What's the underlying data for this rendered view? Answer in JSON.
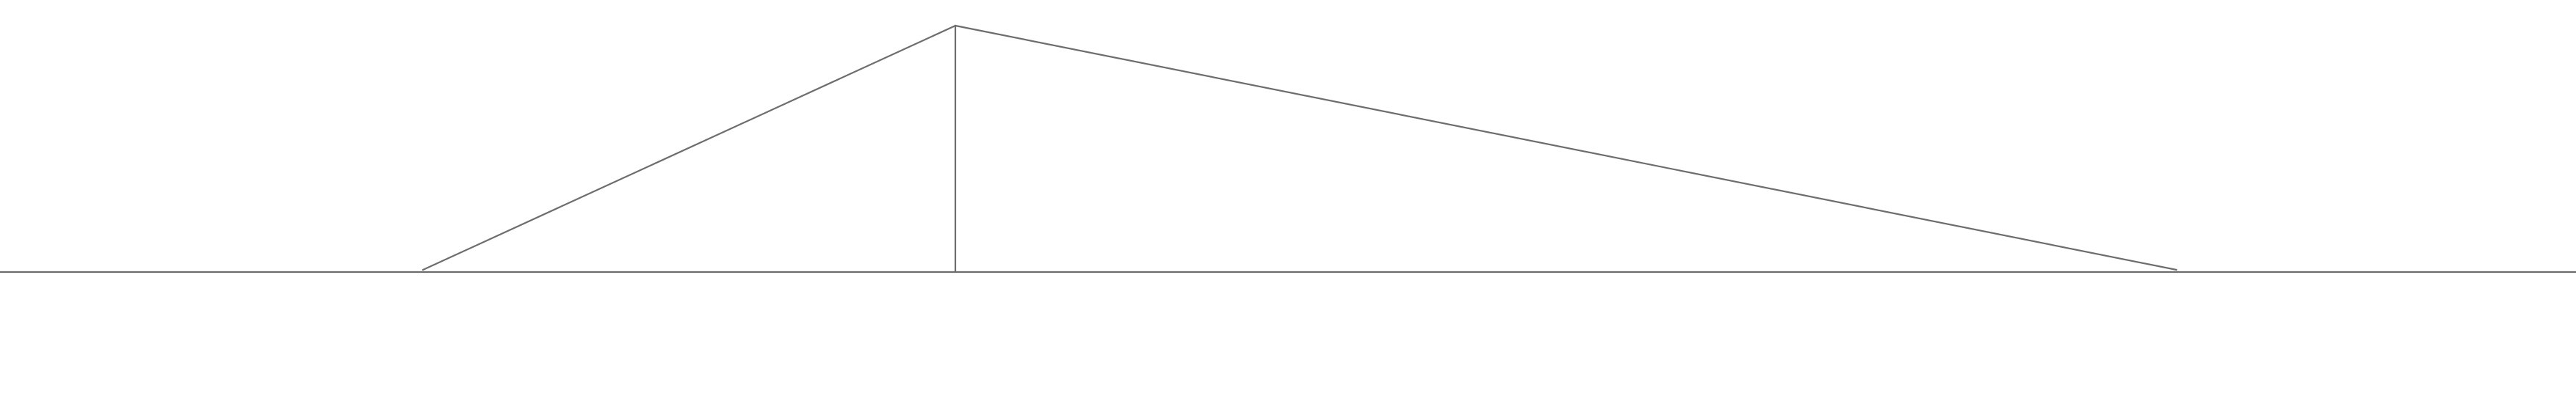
{
  "diagram": {
    "description_shown": "",
    "colors": {
      "background": "#ffffff",
      "line": "#6d6d6d"
    },
    "elements": [
      {
        "kind": "baseline"
      },
      {
        "kind": "triangle"
      },
      {
        "kind": "altitude"
      }
    ]
  }
}
